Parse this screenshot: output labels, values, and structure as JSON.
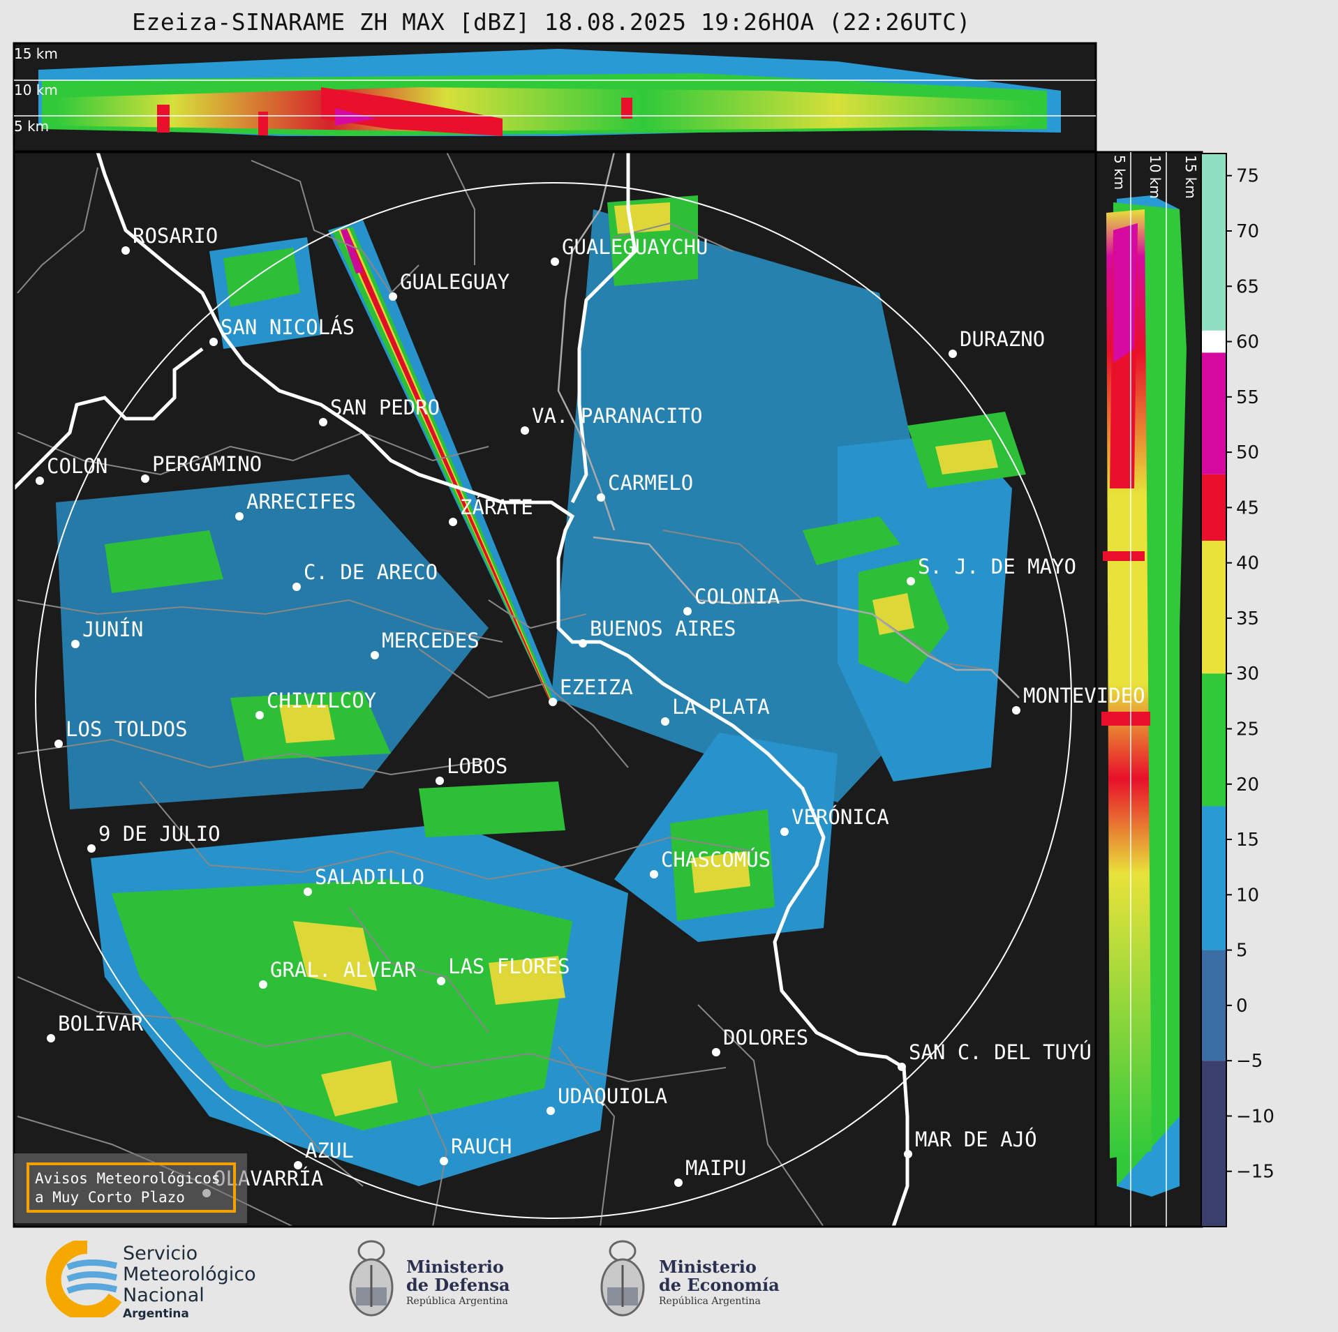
{
  "title": "Ezeiza-SINARAME ZH MAX [dBZ] 18.08.2025 19:26HOA (22:26UTC)",
  "top_panel": {
    "height_labels": [
      "15 km",
      "10 km",
      "5 km"
    ]
  },
  "side_panel": {
    "height_labels": [
      "5 km",
      "10 km",
      "15 km"
    ]
  },
  "colorbar": {
    "ticks": [
      "75",
      "70",
      "65",
      "60",
      "55",
      "50",
      "45",
      "40",
      "35",
      "30",
      "25",
      "20",
      "15",
      "10",
      "5",
      "0",
      "−5",
      "−10",
      "−15"
    ],
    "range": [
      -20,
      77
    ],
    "stops": [
      {
        "from": -20,
        "to": -5,
        "color": "#3b3f6e"
      },
      {
        "from": -5,
        "to": 5,
        "color": "#3a6ea4"
      },
      {
        "from": 5,
        "to": 18,
        "color": "#2a9ad4"
      },
      {
        "from": 18,
        "to": 30,
        "color": "#2fc93a"
      },
      {
        "from": 30,
        "to": 42,
        "color": "#e8e23a"
      },
      {
        "from": 42,
        "to": 48,
        "color": "#e8102a"
      },
      {
        "from": 48,
        "to": 59,
        "color": "#d60aa0"
      },
      {
        "from": 59,
        "to": 61,
        "color": "#ffffff"
      },
      {
        "from": 61,
        "to": 77,
        "color": "#8fe0c0"
      }
    ]
  },
  "cities": [
    {
      "name": "ROSARIO"
    },
    {
      "name": "GUALEGUAYCHU"
    },
    {
      "name": "GUALEGUAY"
    },
    {
      "name": "SAN NICOLÁS"
    },
    {
      "name": "DURAZNO"
    },
    {
      "name": "SAN PEDRO"
    },
    {
      "name": "VA. PARANACITO"
    },
    {
      "name": "COLON"
    },
    {
      "name": "PERGAMINO"
    },
    {
      "name": "CARMELO"
    },
    {
      "name": "ARRECIFES"
    },
    {
      "name": "ZÁRATE"
    },
    {
      "name": "C. DE ARECO"
    },
    {
      "name": "S. J. DE MAYO"
    },
    {
      "name": "COLONIA"
    },
    {
      "name": "JUNÍN"
    },
    {
      "name": "BUENOS AIRES"
    },
    {
      "name": "MERCEDES"
    },
    {
      "name": "EZEIZA"
    },
    {
      "name": "MONTEVIDEO"
    },
    {
      "name": "CHIVILCOY"
    },
    {
      "name": "LA PLATA"
    },
    {
      "name": "LOS TOLDOS"
    },
    {
      "name": "LOBOS"
    },
    {
      "name": "VERÓNICA"
    },
    {
      "name": "9 DE JULIO"
    },
    {
      "name": "CHASCOMÚS"
    },
    {
      "name": "SALADILLO"
    },
    {
      "name": "GRAL. ALVEAR"
    },
    {
      "name": "LAS FLORES"
    },
    {
      "name": "BOLÍVAR"
    },
    {
      "name": "DOLORES"
    },
    {
      "name": "SAN C. DEL TUYÚ"
    },
    {
      "name": "UDAQUIOLA"
    },
    {
      "name": "MAR DE AJÓ"
    },
    {
      "name": "AZUL"
    },
    {
      "name": "RAUCH"
    },
    {
      "name": "MAIPU"
    },
    {
      "name": "OLAVARRÍA"
    }
  ],
  "warning_box": {
    "line1": "Avisos Meteorológicos",
    "line2": "a Muy Corto Plazo"
  },
  "logos": {
    "smn": {
      "line1": "Servicio",
      "line2": "Meteorológico",
      "line3": "Nacional",
      "line4": "Argentina"
    },
    "defensa": {
      "line1": "Ministerio",
      "line2": "de Defensa",
      "line3": "República Argentina"
    },
    "economia": {
      "line1": "Ministerio",
      "line2": "de Economía",
      "line3": "República Argentina"
    }
  },
  "colors": {
    "map_bg": "#1b1b1b",
    "boundary": "#888888",
    "coast": "#ffffff"
  }
}
